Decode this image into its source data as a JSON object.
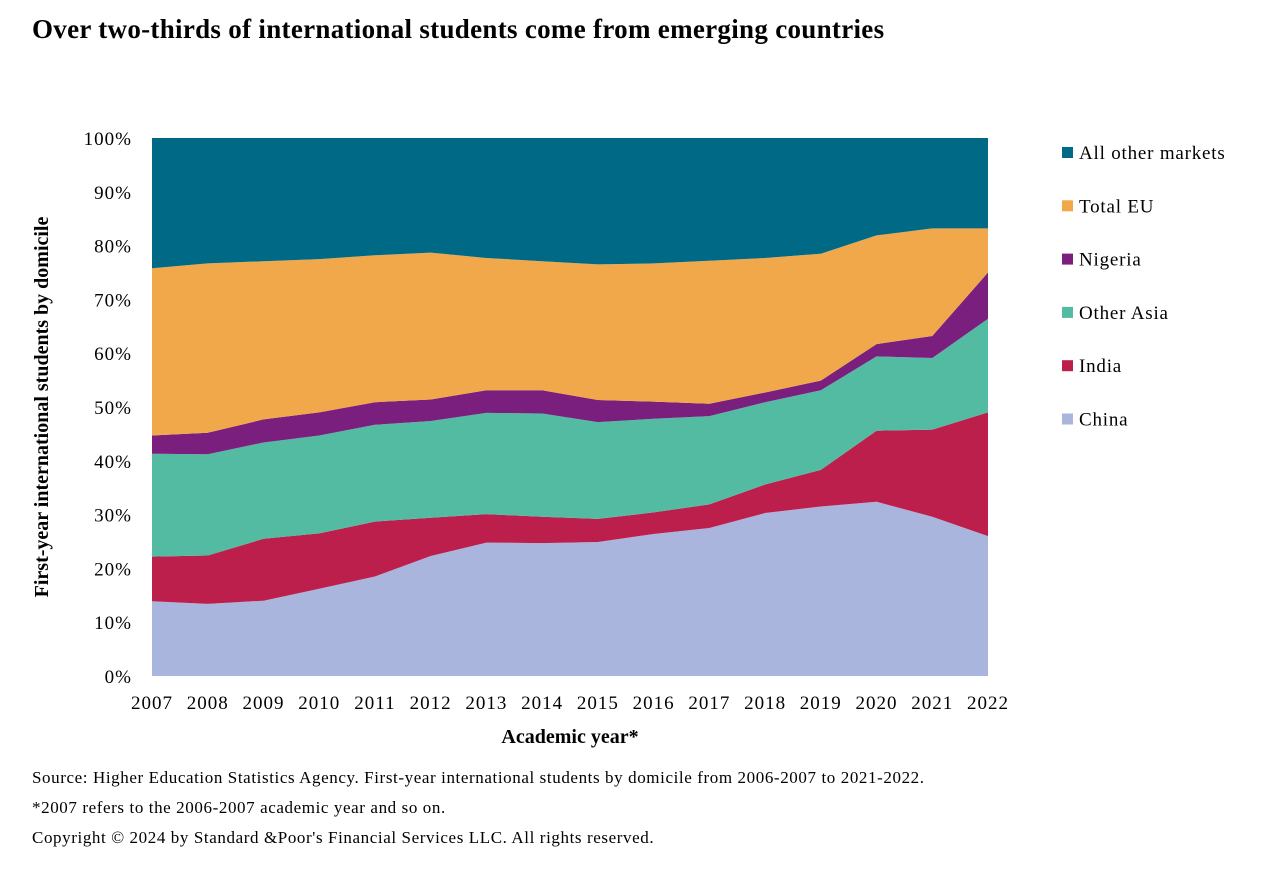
{
  "title": "Over two-thirds of international students come from emerging countries",
  "notes": {
    "source": "Source: Higher Education Statistics Agency. First-year international students by domicile from 2006-2007 to 2021-2022.",
    "footnote": "*2007 refers to the 2006-2007 academic year and so on.",
    "copyright": "Copyright © 2024 by Standard &Poor's Financial Services LLC. All rights reserved."
  },
  "chart_data": {
    "type": "area",
    "stacked": true,
    "xlabel": "Academic year*",
    "ylabel": "First-year international students by domicile",
    "x": [
      "2007",
      "2008",
      "2009",
      "2010",
      "2011",
      "2012",
      "2013",
      "2014",
      "2015",
      "2016",
      "2017",
      "2018",
      "2019",
      "2020",
      "2021",
      "2022"
    ],
    "y_ticks": [
      "0%",
      "10%",
      "20%",
      "30%",
      "40%",
      "50%",
      "60%",
      "70%",
      "80%",
      "90%",
      "100%"
    ],
    "ylim": [
      0,
      100
    ],
    "grid": false,
    "legend_position": "right",
    "series": [
      {
        "name": "China",
        "color": "#a9b5dd",
        "values": [
          13.9,
          13.4,
          14.0,
          16.2,
          18.5,
          22.3,
          24.8,
          24.7,
          24.9,
          26.4,
          27.5,
          30.3,
          31.5,
          32.4,
          29.6,
          26.0
        ]
      },
      {
        "name": "India",
        "color": "#bd1f4d",
        "values": [
          8.3,
          9.0,
          11.5,
          10.3,
          10.2,
          7.1,
          5.3,
          4.9,
          4.3,
          4.0,
          4.4,
          5.3,
          6.8,
          13.2,
          16.2,
          23.0
        ]
      },
      {
        "name": "Other Asia",
        "color": "#53bba1",
        "values": [
          19.1,
          18.8,
          17.9,
          18.2,
          18.0,
          18.0,
          18.8,
          19.2,
          18.0,
          17.4,
          16.4,
          15.3,
          14.8,
          13.8,
          13.3,
          17.4
        ]
      },
      {
        "name": "Nigeria",
        "color": "#7b1f7e",
        "values": [
          3.4,
          4.0,
          4.3,
          4.3,
          4.2,
          4.0,
          4.2,
          4.3,
          4.1,
          3.2,
          2.3,
          1.8,
          1.8,
          2.3,
          4.1,
          8.6
        ]
      },
      {
        "name": "Total EU",
        "color": "#f0a84a",
        "values": [
          31.1,
          31.5,
          29.4,
          28.5,
          27.3,
          27.3,
          24.6,
          24.0,
          25.2,
          25.7,
          26.6,
          25.0,
          23.6,
          20.2,
          20.0,
          8.2
        ]
      },
      {
        "name": "All other markets",
        "color": "#006a86",
        "values": [
          24.2,
          23.3,
          22.9,
          22.5,
          21.8,
          21.3,
          22.3,
          22.9,
          23.5,
          23.3,
          22.8,
          22.3,
          21.5,
          18.1,
          16.8,
          16.8
        ]
      }
    ]
  }
}
